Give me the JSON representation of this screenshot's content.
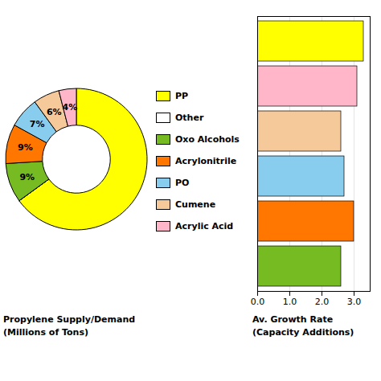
{
  "chart_data": [
    {
      "type": "pie",
      "title": "Propylene Supply/Demand",
      "subtitle": "(Millions of Tons)",
      "categories": [
        "PP",
        "Other",
        "Oxo Alcohols",
        "Acrylonitrile",
        "PO",
        "Cumene",
        "Acrylic Acid"
      ],
      "values": [
        65,
        0,
        9,
        9,
        7,
        6,
        4
      ],
      "value_labels": [
        null,
        null,
        "9%",
        "9%",
        "7%",
        "6%",
        "4%"
      ],
      "colors": [
        "#FFFF00",
        "#FFFFFF",
        "#77BB22",
        "#FF7700",
        "#88CCEE",
        "#F5C99A",
        "#FFB6C8"
      ],
      "data_labels": true
    },
    {
      "type": "bar",
      "title": "Av. Growth Rate",
      "subtitle": "(Capacity Additions)",
      "orientation": "horizontal",
      "categories": [
        "PP",
        "Acrylic Acid",
        "Cumene",
        "PO",
        "Acrylonitrile",
        "Oxo Alcohols"
      ],
      "values": [
        3.3,
        3.1,
        2.6,
        2.7,
        3.0,
        2.6
      ],
      "colors": [
        "#FFFF00",
        "#FFB6C8",
        "#F5C99A",
        "#88CCEE",
        "#FF7700",
        "#77BB22"
      ],
      "xlim": [
        0,
        3.5
      ],
      "xticks": [
        0,
        1,
        2,
        3
      ],
      "grid": true,
      "tick_labels": "x"
    }
  ]
}
